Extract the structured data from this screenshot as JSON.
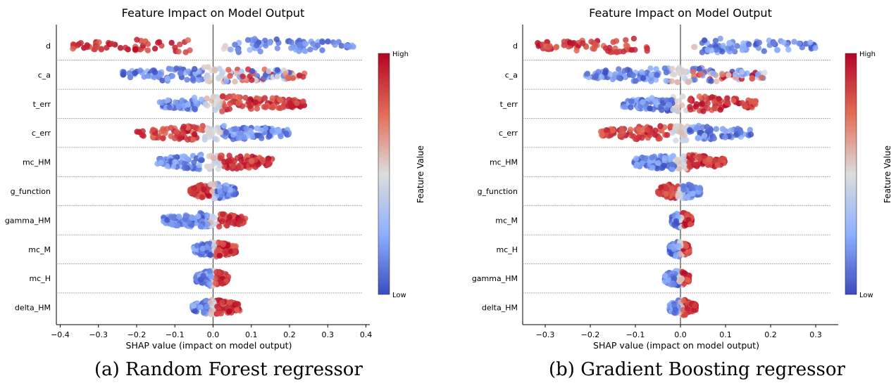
{
  "chart_data": [
    {
      "type": "scatter",
      "subtype": "shap_beeswarm",
      "title": "Feature Impact on Model Output",
      "xlabel": "SHAP value (impact on model output)",
      "xlim": [
        -0.41,
        0.41
      ],
      "xticks": [
        -0.4,
        -0.3,
        -0.2,
        -0.1,
        0.0,
        0.1,
        0.2,
        0.3,
        0.4
      ],
      "xtick_labels": [
        "−0.4",
        "−0.3",
        "−0.2",
        "−0.1",
        "0.0",
        "0.1",
        "0.2",
        "0.3",
        "0.4"
      ],
      "colorbar": {
        "label": "Feature Value",
        "high": "High",
        "low": "Low"
      },
      "caption": "(a) Random Forest regressor",
      "features": [
        {
          "name": "d",
          "min": -0.37,
          "max": 0.37,
          "gap": [
            -0.06,
            0.025
          ],
          "neg_color": "high",
          "pos_color": "low"
        },
        {
          "name": "c_a",
          "min": -0.24,
          "max": 0.24,
          "neg_color": "low",
          "pos_color": "mixed"
        },
        {
          "name": "t_err",
          "min": -0.14,
          "max": 0.24,
          "neg_color": "low",
          "pos_color": "high"
        },
        {
          "name": "c_err",
          "min": -0.2,
          "max": 0.2,
          "neg_color": "high",
          "pos_color": "low"
        },
        {
          "name": "mc_HM",
          "min": -0.15,
          "max": 0.155,
          "neg_color": "low",
          "pos_color": "high"
        },
        {
          "name": "g_function",
          "min": -0.06,
          "max": 0.06,
          "neg_color": "high",
          "pos_color": "low"
        },
        {
          "name": "gamma_HM",
          "min": -0.13,
          "max": 0.085,
          "neg_color": "low",
          "pos_color": "high"
        },
        {
          "name": "mc_M",
          "min": -0.05,
          "max": 0.06,
          "neg_color": "low",
          "pos_color": "high"
        },
        {
          "name": "mc_H",
          "min": -0.045,
          "max": 0.04,
          "neg_color": "low",
          "pos_color": "high"
        },
        {
          "name": "delta_HM",
          "min": -0.055,
          "max": 0.07,
          "neg_color": "low",
          "pos_color": "high"
        }
      ]
    },
    {
      "type": "scatter",
      "subtype": "shap_beeswarm",
      "title": "Feature Impact on Model Output",
      "xlabel": "SHAP value (impact on model output)",
      "xlim": [
        -0.35,
        0.35
      ],
      "xticks": [
        -0.3,
        -0.2,
        -0.1,
        0.0,
        0.1,
        0.2,
        0.3
      ],
      "xtick_labels": [
        "−0.3",
        "−0.2",
        "−0.1",
        "0.0",
        "0.1",
        "0.2",
        "0.3"
      ],
      "colorbar": {
        "label": "Feature Value",
        "high": "High",
        "low": "Low"
      },
      "caption": "(b) Gradient Boosting regressor",
      "features": [
        {
          "name": "d",
          "min": -0.32,
          "max": 0.3,
          "gap": [
            -0.07,
            0.02
          ],
          "neg_color": "high",
          "pos_color": "low"
        },
        {
          "name": "c_a",
          "min": -0.21,
          "max": 0.19,
          "neg_color": "low",
          "pos_color": "mixed"
        },
        {
          "name": "t_err",
          "min": -0.13,
          "max": 0.17,
          "neg_color": "low",
          "pos_color": "high"
        },
        {
          "name": "c_err",
          "min": -0.18,
          "max": 0.16,
          "neg_color": "high",
          "pos_color": "low"
        },
        {
          "name": "mc_HM",
          "min": -0.11,
          "max": 0.1,
          "neg_color": "low",
          "pos_color": "high"
        },
        {
          "name": "g_function",
          "min": -0.05,
          "max": 0.045,
          "neg_color": "high",
          "pos_color": "low"
        },
        {
          "name": "mc_M",
          "min": -0.02,
          "max": 0.025,
          "neg_color": "low",
          "pos_color": "high"
        },
        {
          "name": "mc_H",
          "min": -0.025,
          "max": 0.02,
          "neg_color": "low",
          "pos_color": "high"
        },
        {
          "name": "gamma_HM",
          "min": -0.035,
          "max": 0.02,
          "neg_color": "low",
          "pos_color": "high"
        },
        {
          "name": "delta_HM",
          "min": -0.025,
          "max": 0.035,
          "neg_color": "low",
          "pos_color": "high"
        }
      ]
    }
  ],
  "colors": {
    "high": "#b40426",
    "high_mid": "#e36c55",
    "mid": "#dcdddd",
    "low_mid": "#8db0fe",
    "low": "#3b4cc0"
  }
}
